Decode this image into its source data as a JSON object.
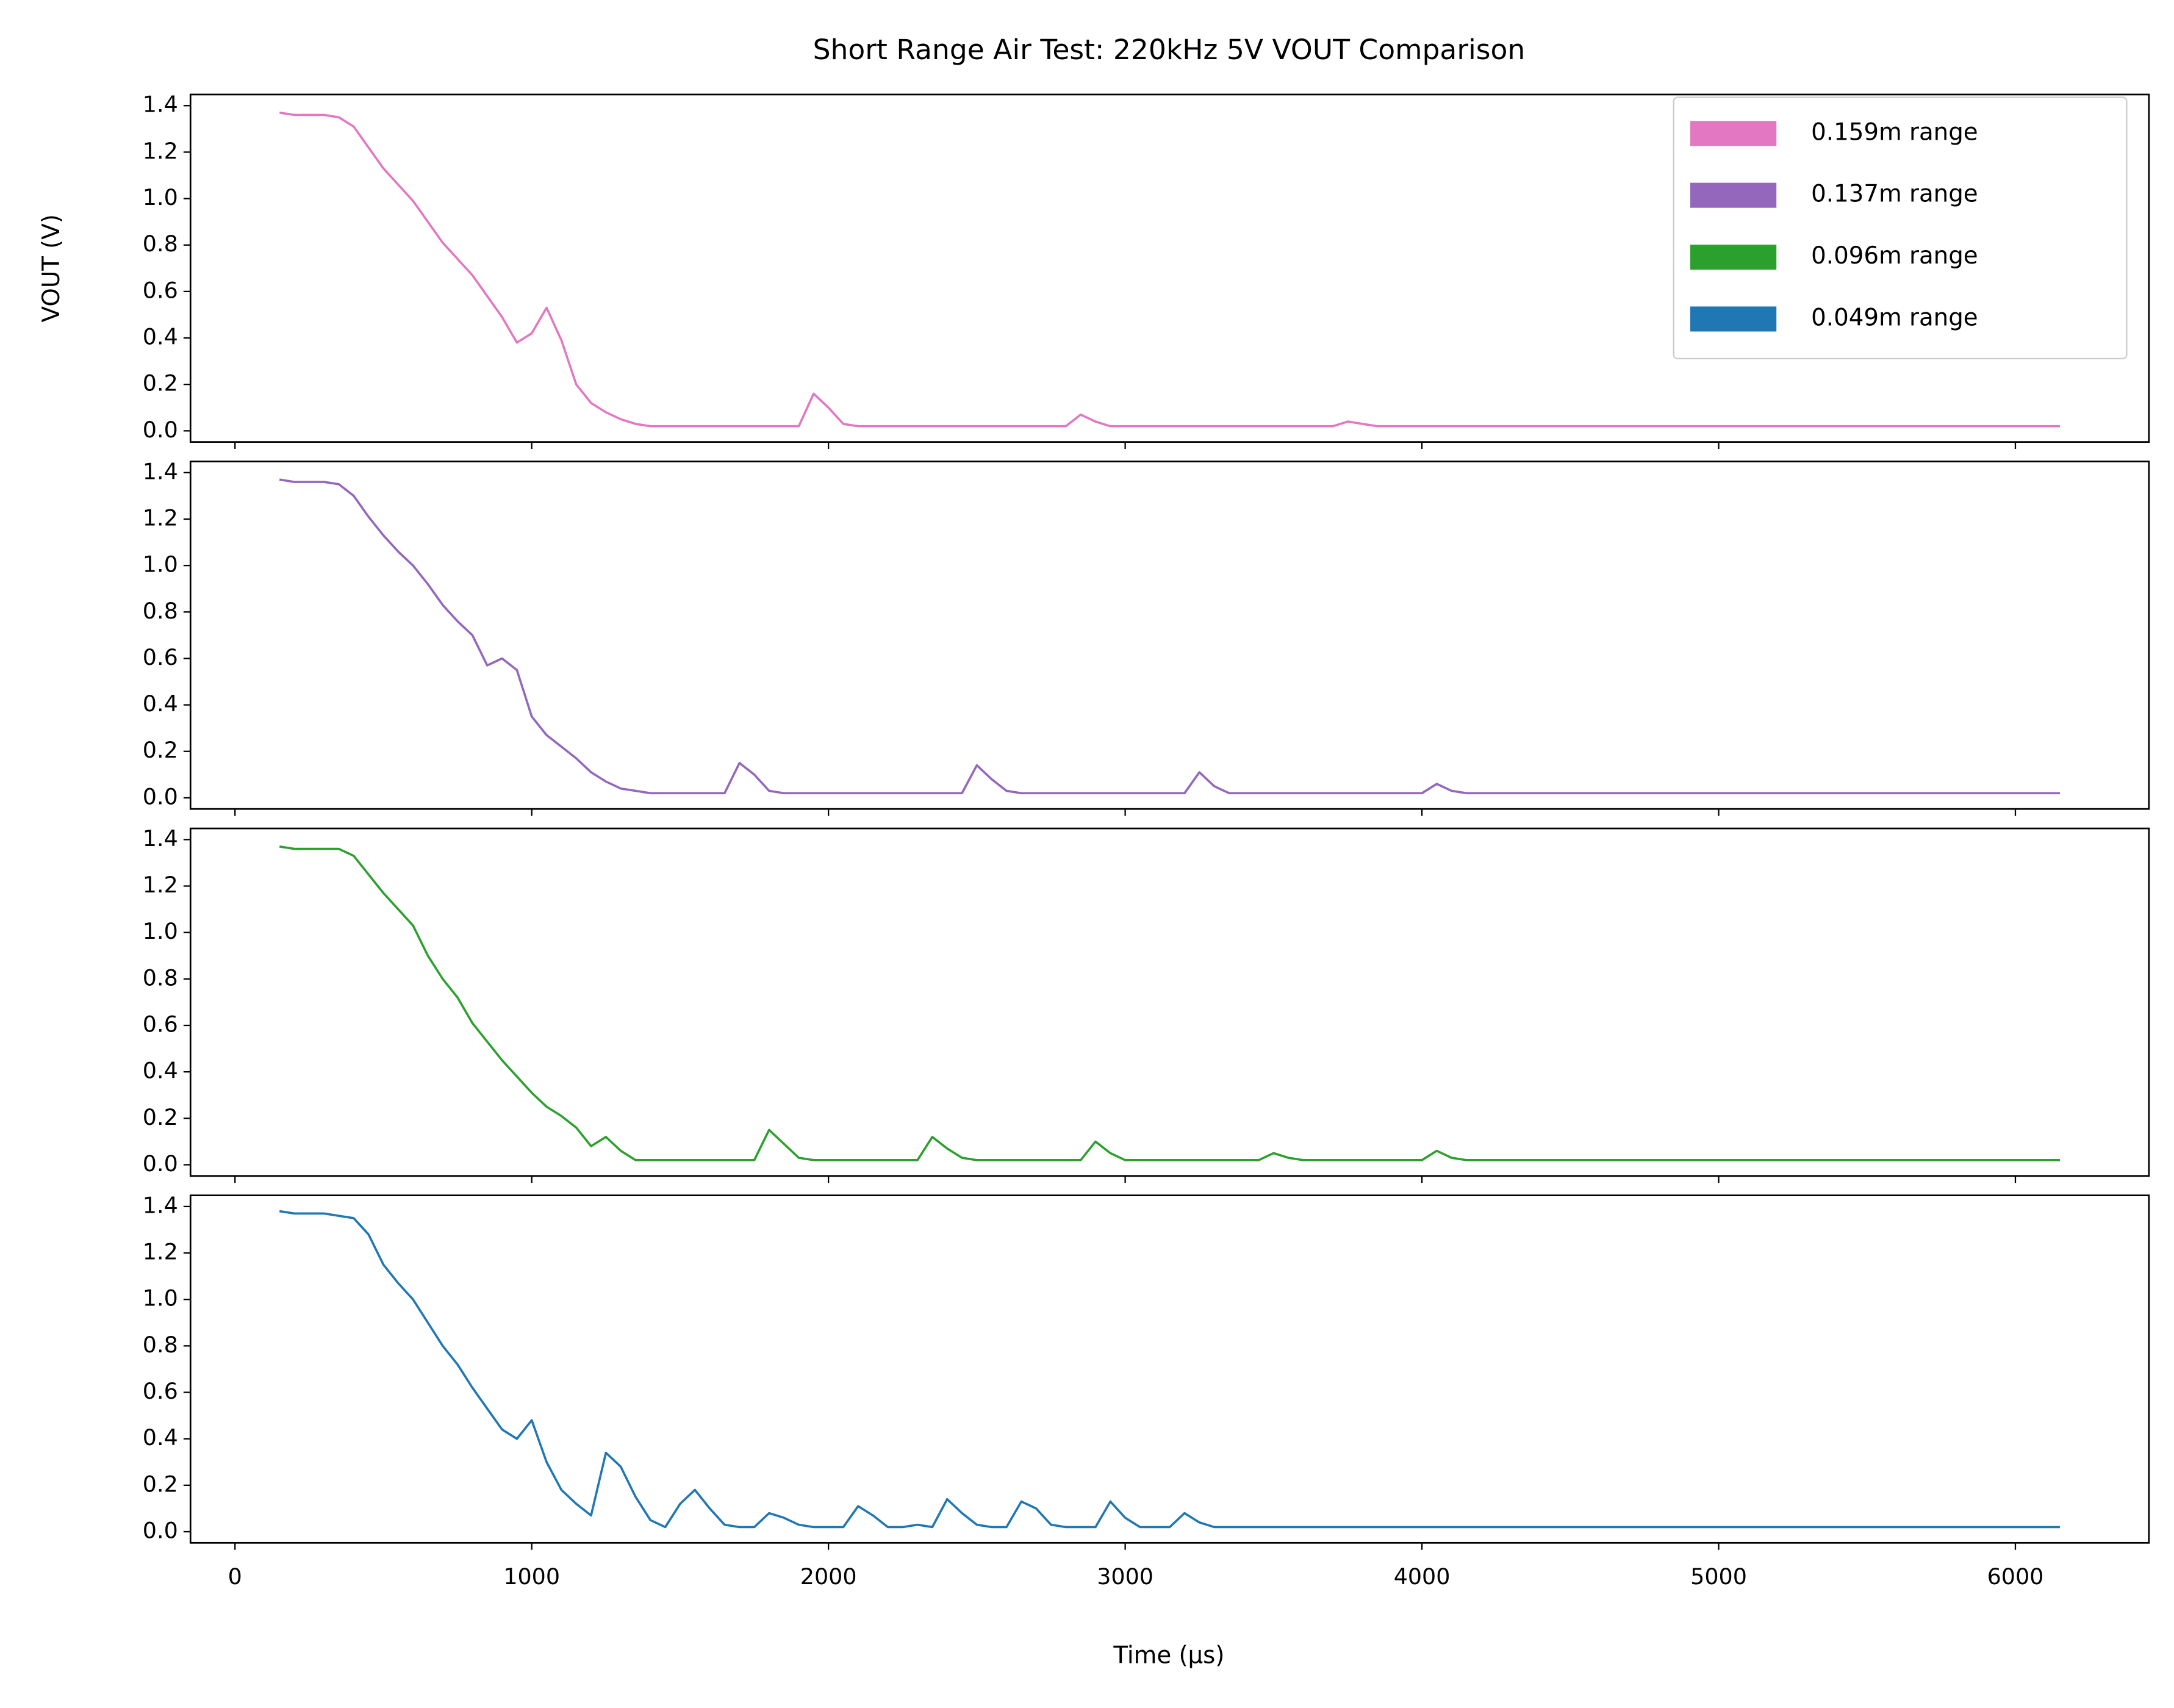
{
  "chart_data": {
    "type": "line",
    "title": "Short Range Air Test: 220kHz 5V VOUT Comparison",
    "xlabel": "Time (μs)",
    "ylabel": "VOUT (V)",
    "xlim": [
      -150,
      6450
    ],
    "xticks": [
      0,
      1000,
      2000,
      3000,
      4000,
      5000,
      6000
    ],
    "ylim": [
      -0.048,
      1.448
    ],
    "yticks": [
      {
        "value": 0,
        "label": "0.0"
      },
      0.2,
      0.4,
      0.6,
      0.8,
      {
        "value": 1,
        "label": "1.0"
      },
      1.2,
      1.4
    ],
    "legend": "upper right",
    "x": [
      150,
      200,
      250,
      300,
      350,
      400,
      450,
      500,
      550,
      600,
      650,
      700,
      750,
      800,
      850,
      900,
      950,
      1000,
      1050,
      1100,
      1150,
      1200,
      1250,
      1300,
      1350,
      1400,
      1450,
      1500,
      1550,
      1600,
      1650,
      1700,
      1750,
      1800,
      1850,
      1900,
      1950,
      2000,
      2050,
      2100,
      2150,
      2200,
      2250,
      2300,
      2350,
      2400,
      2450,
      2500,
      2550,
      2600,
      2650,
      2700,
      2750,
      2800,
      2850,
      2900,
      2950,
      3000,
      3050,
      3100,
      3150,
      3200,
      3250,
      3300,
      3350,
      3400,
      3450,
      3500,
      3550,
      3600,
      3650,
      3700,
      3750,
      3800,
      3850,
      3900,
      3950,
      4000,
      4050,
      4100,
      4150,
      4200,
      4250,
      4300,
      4350,
      4400,
      4450,
      4500,
      4550,
      4600,
      4650,
      4700,
      4750,
      4800,
      4850,
      4900,
      4950,
      5000,
      5050,
      5100,
      5150,
      5200,
      5250,
      5300,
      5350,
      5400,
      5450,
      5500,
      5550,
      5600,
      5650,
      5700,
      5750,
      5800,
      5850,
      5900,
      5950,
      6000,
      6050,
      6100,
      6150
    ],
    "series": [
      {
        "name": "0.159m range",
        "color": "#e377c2",
        "values": [
          1.37,
          1.36,
          1.36,
          1.36,
          1.35,
          1.31,
          1.22,
          1.13,
          1.06,
          0.99,
          0.9,
          0.81,
          0.74,
          0.67,
          0.58,
          0.49,
          0.38,
          0.42,
          0.53,
          0.39,
          0.2,
          0.12,
          0.08,
          0.05,
          0.03,
          0.02,
          0.02,
          0.02,
          0.02,
          0.02,
          0.02,
          0.02,
          0.02,
          0.02,
          0.02,
          0.02,
          0.16,
          0.1,
          0.03,
          0.02,
          0.02,
          0.02,
          0.02,
          0.02,
          0.02,
          0.02,
          0.02,
          0.02,
          0.02,
          0.02,
          0.02,
          0.02,
          0.02,
          0.02,
          0.07,
          0.04,
          0.02,
          0.02,
          0.02,
          0.02,
          0.02,
          0.02,
          0.02,
          0.02,
          0.02,
          0.02,
          0.02,
          0.02,
          0.02,
          0.02,
          0.02,
          0.02,
          0.04,
          0.03,
          0.02,
          0.02,
          0.02,
          0.02,
          0.02,
          0.02,
          0.02,
          0.02,
          0.02,
          0.02,
          0.02,
          0.02,
          0.02,
          0.02,
          0.02,
          0.02,
          0.02,
          0.02,
          0.02,
          0.02,
          0.02,
          0.02,
          0.02,
          0.02,
          0.02,
          0.02,
          0.02,
          0.02,
          0.02,
          0.02,
          0.02,
          0.02,
          0.02,
          0.02,
          0.02,
          0.02,
          0.02,
          0.02,
          0.02,
          0.02,
          0.02,
          0.02,
          0.02,
          0.02,
          0.02,
          0.02,
          0.02
        ]
      },
      {
        "name": "0.137m range",
        "color": "#9467bd",
        "values": [
          1.37,
          1.36,
          1.36,
          1.36,
          1.35,
          1.3,
          1.21,
          1.13,
          1.06,
          1.0,
          0.92,
          0.83,
          0.76,
          0.7,
          0.57,
          0.6,
          0.55,
          0.35,
          0.27,
          0.22,
          0.17,
          0.11,
          0.07,
          0.04,
          0.03,
          0.02,
          0.02,
          0.02,
          0.02,
          0.02,
          0.02,
          0.15,
          0.1,
          0.03,
          0.02,
          0.02,
          0.02,
          0.02,
          0.02,
          0.02,
          0.02,
          0.02,
          0.02,
          0.02,
          0.02,
          0.02,
          0.02,
          0.14,
          0.08,
          0.03,
          0.02,
          0.02,
          0.02,
          0.02,
          0.02,
          0.02,
          0.02,
          0.02,
          0.02,
          0.02,
          0.02,
          0.02,
          0.11,
          0.05,
          0.02,
          0.02,
          0.02,
          0.02,
          0.02,
          0.02,
          0.02,
          0.02,
          0.02,
          0.02,
          0.02,
          0.02,
          0.02,
          0.02,
          0.06,
          0.03,
          0.02,
          0.02,
          0.02,
          0.02,
          0.02,
          0.02,
          0.02,
          0.02,
          0.02,
          0.02,
          0.02,
          0.02,
          0.02,
          0.02,
          0.02,
          0.02,
          0.02,
          0.02,
          0.02,
          0.02,
          0.02,
          0.02,
          0.02,
          0.02,
          0.02,
          0.02,
          0.02,
          0.02,
          0.02,
          0.02,
          0.02,
          0.02,
          0.02,
          0.02,
          0.02,
          0.02,
          0.02,
          0.02,
          0.02,
          0.02,
          0.02
        ]
      },
      {
        "name": "0.096m range",
        "color": "#2ca02c",
        "values": [
          1.37,
          1.36,
          1.36,
          1.36,
          1.36,
          1.33,
          1.25,
          1.17,
          1.1,
          1.03,
          0.9,
          0.8,
          0.72,
          0.61,
          0.53,
          0.45,
          0.38,
          0.31,
          0.25,
          0.21,
          0.16,
          0.08,
          0.12,
          0.06,
          0.02,
          0.02,
          0.02,
          0.02,
          0.02,
          0.02,
          0.02,
          0.02,
          0.02,
          0.15,
          0.09,
          0.03,
          0.02,
          0.02,
          0.02,
          0.02,
          0.02,
          0.02,
          0.02,
          0.02,
          0.12,
          0.07,
          0.03,
          0.02,
          0.02,
          0.02,
          0.02,
          0.02,
          0.02,
          0.02,
          0.02,
          0.1,
          0.05,
          0.02,
          0.02,
          0.02,
          0.02,
          0.02,
          0.02,
          0.02,
          0.02,
          0.02,
          0.02,
          0.05,
          0.03,
          0.02,
          0.02,
          0.02,
          0.02,
          0.02,
          0.02,
          0.02,
          0.02,
          0.02,
          0.06,
          0.03,
          0.02,
          0.02,
          0.02,
          0.02,
          0.02,
          0.02,
          0.02,
          0.02,
          0.02,
          0.02,
          0.02,
          0.02,
          0.02,
          0.02,
          0.02,
          0.02,
          0.02,
          0.02,
          0.02,
          0.02,
          0.02,
          0.02,
          0.02,
          0.02,
          0.02,
          0.02,
          0.02,
          0.02,
          0.02,
          0.02,
          0.02,
          0.02,
          0.02,
          0.02,
          0.02,
          0.02,
          0.02,
          0.02,
          0.02,
          0.02,
          0.02
        ]
      },
      {
        "name": "0.049m range",
        "color": "#1f77b4",
        "values": [
          1.38,
          1.37,
          1.37,
          1.37,
          1.36,
          1.35,
          1.28,
          1.15,
          1.07,
          1.0,
          0.9,
          0.8,
          0.72,
          0.62,
          0.53,
          0.44,
          0.4,
          0.48,
          0.3,
          0.18,
          0.12,
          0.07,
          0.34,
          0.28,
          0.15,
          0.05,
          0.02,
          0.12,
          0.18,
          0.1,
          0.03,
          0.02,
          0.02,
          0.08,
          0.06,
          0.03,
          0.02,
          0.02,
          0.02,
          0.11,
          0.07,
          0.02,
          0.02,
          0.03,
          0.02,
          0.14,
          0.08,
          0.03,
          0.02,
          0.02,
          0.13,
          0.1,
          0.03,
          0.02,
          0.02,
          0.02,
          0.13,
          0.06,
          0.02,
          0.02,
          0.02,
          0.08,
          0.04,
          0.02,
          0.02,
          0.02,
          0.02,
          0.02,
          0.02,
          0.02,
          0.02,
          0.02,
          0.02,
          0.02,
          0.02,
          0.02,
          0.02,
          0.02,
          0.02,
          0.02,
          0.02,
          0.02,
          0.02,
          0.02,
          0.02,
          0.02,
          0.02,
          0.02,
          0.02,
          0.02,
          0.02,
          0.02,
          0.02,
          0.02,
          0.02,
          0.02,
          0.02,
          0.02,
          0.02,
          0.02,
          0.02,
          0.02,
          0.02,
          0.02,
          0.02,
          0.02,
          0.02,
          0.02,
          0.02,
          0.02,
          0.02,
          0.02,
          0.02,
          0.02,
          0.02,
          0.02,
          0.02,
          0.02,
          0.02,
          0.02,
          0.02
        ]
      }
    ]
  }
}
